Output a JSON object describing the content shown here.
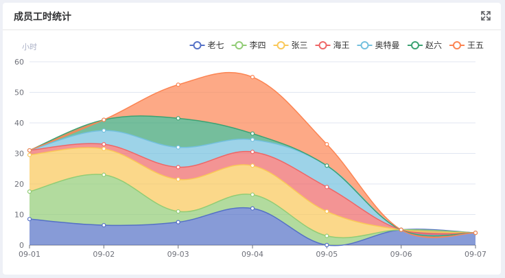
{
  "card": {
    "title": "成员工时统计",
    "fullscreen_icon": "fullscreen-expand-icon"
  },
  "chart_data": {
    "type": "area",
    "stacked": true,
    "smooth": true,
    "title": "成员工时统计",
    "ylabel": "小时",
    "xlabel": "",
    "ylim": [
      0,
      60
    ],
    "yticks": [
      0,
      10,
      20,
      30,
      40,
      50,
      60
    ],
    "categories": [
      "09-01",
      "09-02",
      "09-03",
      "09-04",
      "09-05",
      "09-06",
      "09-07"
    ],
    "legend_position": "top-right",
    "grid": true,
    "series": [
      {
        "name": "老七",
        "color": "#5470c6",
        "values": [
          8.5,
          6.5,
          7.5,
          12,
          0,
          5,
          4
        ]
      },
      {
        "name": "李四",
        "color": "#91cc75",
        "values": [
          9,
          16.5,
          3.5,
          4.5,
          3,
          0,
          0
        ]
      },
      {
        "name": "张三",
        "color": "#fac858",
        "values": [
          12,
          8.5,
          10.5,
          9.5,
          8,
          0,
          0
        ]
      },
      {
        "name": "海王",
        "color": "#ee6666",
        "values": [
          1.5,
          1.5,
          4,
          4.5,
          8,
          0,
          0
        ]
      },
      {
        "name": "奥特曼",
        "color": "#73c0de",
        "values": [
          0,
          4.5,
          6.5,
          4,
          7,
          0,
          0
        ]
      },
      {
        "name": "赵六",
        "color": "#3ba272",
        "values": [
          0,
          3.5,
          9.5,
          2,
          0,
          0,
          0
        ]
      },
      {
        "name": "王五",
        "color": "#fc8452",
        "values": [
          0,
          0,
          11,
          18.5,
          7,
          0,
          0
        ]
      }
    ]
  }
}
